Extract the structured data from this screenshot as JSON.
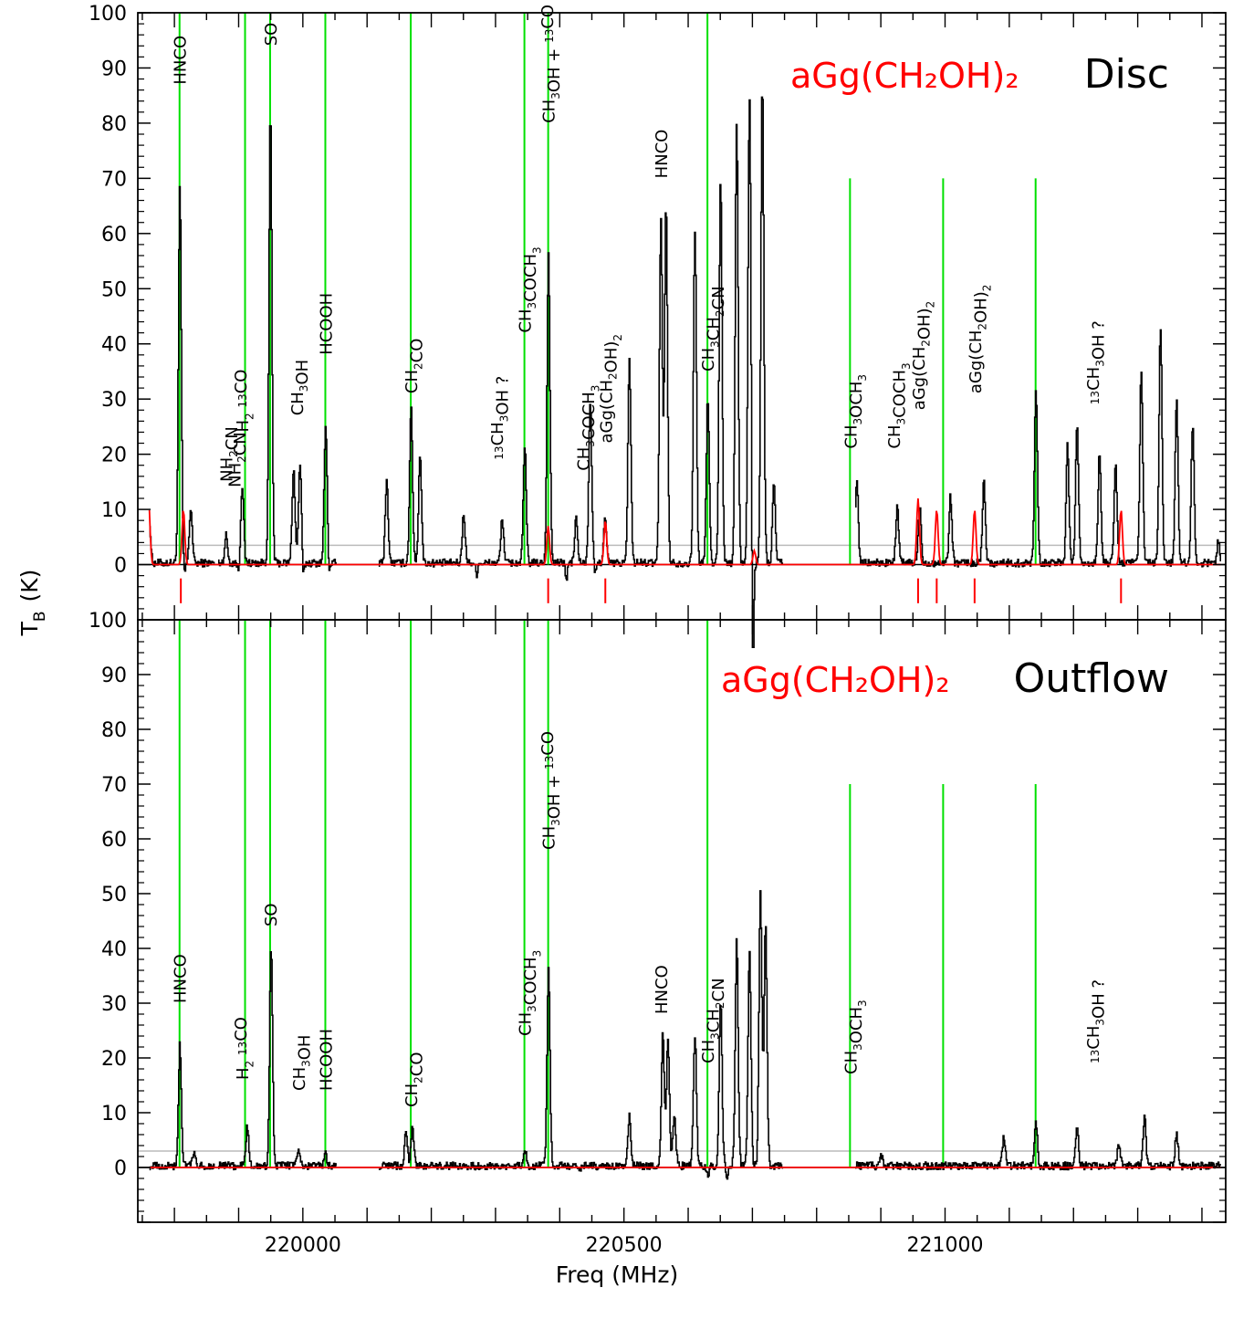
{
  "figure": {
    "xlabel": "Freq (MHz)",
    "ylabel": "T",
    "ylabel_sub": "B",
    "ylabel_unit": "(K)"
  },
  "colors": {
    "spectrum": "#000000",
    "model": "#ff0000",
    "line_marker": "#00e000",
    "threshold": "#bbbbbb"
  },
  "chart_data": [
    {
      "type": "line",
      "panel": "Disc",
      "title": "Disc",
      "model_label": "aGg(CH₂OH)₂",
      "xlim": [
        219743,
        221437
      ],
      "ylim": [
        -10,
        100
      ],
      "x_ticks": [
        220000,
        220500,
        221000
      ],
      "y_ticks": [
        0,
        10,
        20,
        30,
        40,
        50,
        60,
        70,
        80,
        90,
        100
      ],
      "threshold": 3.5,
      "marker_lines": [
        {
          "x": 219808,
          "top": 100
        },
        {
          "x": 219910,
          "top": 100
        },
        {
          "x": 219949,
          "top": 100
        },
        {
          "x": 220035,
          "top": 100
        },
        {
          "x": 220168,
          "top": 100
        },
        {
          "x": 220345,
          "top": 100
        },
        {
          "x": 220382,
          "top": 100
        },
        {
          "x": 220630,
          "top": 100
        },
        {
          "x": 220852,
          "top": 70
        },
        {
          "x": 220997,
          "top": 70
        },
        {
          "x": 221141,
          "top": 70
        }
      ],
      "model_ticks": [
        219810,
        220382,
        220471,
        220958,
        220987,
        221046,
        221274
      ],
      "spectrum_peaks": [
        [
          219760,
          8
        ],
        [
          219808,
          68
        ],
        [
          219825,
          10
        ],
        [
          219880,
          5
        ],
        [
          219905,
          14
        ],
        [
          219949,
          82
        ],
        [
          219995,
          18
        ],
        [
          220035,
          25
        ],
        [
          219985,
          17
        ],
        [
          220130,
          15
        ],
        [
          220168,
          28
        ],
        [
          220182,
          20
        ],
        [
          220250,
          9
        ],
        [
          220310,
          8
        ],
        [
          220345,
          21
        ],
        [
          220382,
          56
        ],
        [
          220425,
          8
        ],
        [
          220447,
          29
        ],
        [
          220470,
          8
        ],
        [
          220508,
          37
        ],
        [
          220557,
          62
        ],
        [
          220565,
          65
        ],
        [
          220610,
          60
        ],
        [
          220630,
          30
        ],
        [
          220650,
          70
        ],
        [
          220675,
          80
        ],
        [
          220695,
          85
        ],
        [
          220715,
          87
        ],
        [
          220733,
          14
        ],
        [
          220862,
          15
        ],
        [
          220925,
          10
        ],
        [
          220960,
          10
        ],
        [
          221008,
          12
        ],
        [
          221060,
          15
        ],
        [
          221141,
          32
        ],
        [
          221190,
          22
        ],
        [
          221205,
          25
        ],
        [
          221240,
          20
        ],
        [
          221265,
          18
        ],
        [
          221305,
          35
        ],
        [
          221335,
          43
        ],
        [
          221360,
          30
        ],
        [
          221385,
          25
        ],
        [
          221425,
          4
        ]
      ],
      "spectrum_dips": [
        [
          219815,
          -2
        ],
        [
          219900,
          -2
        ],
        [
          220000,
          -3
        ],
        [
          220040,
          -2
        ],
        [
          220270,
          -2
        ],
        [
          220410,
          -3
        ],
        [
          220455,
          -2
        ],
        [
          220700,
          -25
        ],
        [
          221187,
          -2
        ]
      ],
      "spectrum_segments": [
        [
          219761,
          219862
        ],
        [
          219868,
          220052
        ],
        [
          220118,
          220748
        ],
        [
          220860,
          221430
        ]
      ],
      "model_peaks": [
        [
          219760,
          11
        ],
        [
          219814,
          10
        ],
        [
          220382,
          7
        ],
        [
          220471,
          8
        ],
        [
          220703,
          2.5
        ],
        [
          220958,
          12
        ],
        [
          220987,
          10
        ],
        [
          221046,
          10
        ],
        [
          221274,
          10
        ]
      ],
      "annotations": [
        {
          "text": "HNCO",
          "x": 219808,
          "y": 87
        },
        {
          "text": "NH2CN",
          "x": 219880,
          "y": 15
        },
        {
          "text": "NH2CN",
          "x": 219893,
          "y": 14
        },
        {
          "text": "H2 13CO",
          "x": 219905,
          "y": 24
        },
        {
          "text": "SO",
          "x": 219949,
          "y": 94
        },
        {
          "text": "CH3OH",
          "x": 219990,
          "y": 27
        },
        {
          "text": "HCOOH",
          "x": 220035,
          "y": 38
        },
        {
          "text": "CH2CO",
          "x": 220168,
          "y": 31
        },
        {
          "text": "13CH3OH ?",
          "x": 220312,
          "y": 19
        },
        {
          "text": "CH3COCH3",
          "x": 220345,
          "y": 42
        },
        {
          "text": "CH3OH + 13CO",
          "x": 220382,
          "y": 80
        },
        {
          "text": "CH3COCH3",
          "x": 220436,
          "y": 17
        },
        {
          "text": "aGg(CH2OH)2",
          "x": 220471,
          "y": 22
        },
        {
          "text": "HNCO",
          "x": 220557,
          "y": 70
        },
        {
          "text": "CH3CH2CN",
          "x": 220630,
          "y": 35
        },
        {
          "text": "CH3OCH3",
          "x": 220852,
          "y": 21
        },
        {
          "text": "CH3COCH3",
          "x": 220920,
          "y": 21
        },
        {
          "text": "aGg(CH2OH)2",
          "x": 220958,
          "y": 28
        },
        {
          "text": "aGg(CH2OH)2",
          "x": 221046,
          "y": 31
        },
        {
          "text": "13CH3OH ?",
          "x": 221240,
          "y": 29
        }
      ]
    },
    {
      "type": "line",
      "panel": "Outflow",
      "title": "Outflow",
      "model_label": "aGg(CH₂OH)₂",
      "xlim": [
        219743,
        221437
      ],
      "ylim": [
        -10,
        100
      ],
      "x_ticks": [
        220000,
        220500,
        221000
      ],
      "y_ticks": [
        0,
        10,
        20,
        30,
        40,
        50,
        60,
        70,
        80,
        90,
        100
      ],
      "threshold": 3,
      "marker_lines": [
        {
          "x": 219808,
          "top": 100
        },
        {
          "x": 219910,
          "top": 100
        },
        {
          "x": 219949,
          "top": 100
        },
        {
          "x": 220035,
          "top": 100
        },
        {
          "x": 220168,
          "top": 100
        },
        {
          "x": 220345,
          "top": 100
        },
        {
          "x": 220382,
          "top": 100
        },
        {
          "x": 220630,
          "top": 100
        },
        {
          "x": 220852,
          "top": 70
        },
        {
          "x": 220997,
          "top": 70
        },
        {
          "x": 221141,
          "top": 70
        }
      ],
      "model_ticks": [],
      "spectrum_peaks": [
        [
          219808,
          22
        ],
        [
          219830,
          2
        ],
        [
          219913,
          7
        ],
        [
          219950,
          40
        ],
        [
          219993,
          3
        ],
        [
          220035,
          2
        ],
        [
          220160,
          6
        ],
        [
          220170,
          7
        ],
        [
          220345,
          3
        ],
        [
          220382,
          36
        ],
        [
          220508,
          9
        ],
        [
          220560,
          24
        ],
        [
          220568,
          23
        ],
        [
          220578,
          9
        ],
        [
          220610,
          24
        ],
        [
          220650,
          30
        ],
        [
          220675,
          41
        ],
        [
          220695,
          39
        ],
        [
          220712,
          50
        ],
        [
          220720,
          44
        ],
        [
          220852,
          5
        ],
        [
          220900,
          2
        ],
        [
          221091,
          5
        ],
        [
          221141,
          8
        ],
        [
          221205,
          7
        ],
        [
          221270,
          4
        ],
        [
          221310,
          9
        ],
        [
          221360,
          6
        ]
      ],
      "spectrum_dips": [
        [
          220430,
          -1.5
        ],
        [
          220630,
          -2
        ],
        [
          220660,
          -2
        ]
      ],
      "spectrum_segments": [
        [
          219761,
          219862
        ],
        [
          219868,
          220052
        ],
        [
          220118,
          220748
        ],
        [
          220860,
          221430
        ]
      ],
      "model_peaks": [],
      "annotations": [
        {
          "text": "HNCO",
          "x": 219808,
          "y": 30
        },
        {
          "text": "H2 13CO",
          "x": 219905,
          "y": 16
        },
        {
          "text": "SO",
          "x": 219949,
          "y": 44
        },
        {
          "text": "CH3OH",
          "x": 219993,
          "y": 14
        },
        {
          "text": "HCOOH",
          "x": 220035,
          "y": 14
        },
        {
          "text": "CH2CO",
          "x": 220168,
          "y": 11
        },
        {
          "text": "CH3COCH3",
          "x": 220345,
          "y": 24
        },
        {
          "text": "CH3OH + 13CO",
          "x": 220382,
          "y": 58
        },
        {
          "text": "HNCO",
          "x": 220557,
          "y": 28
        },
        {
          "text": "CH3CH2CN",
          "x": 220630,
          "y": 19
        },
        {
          "text": "CH3OCH3",
          "x": 220852,
          "y": 17
        },
        {
          "text": "13CH3OH ?",
          "x": 221240,
          "y": 19
        }
      ]
    }
  ]
}
